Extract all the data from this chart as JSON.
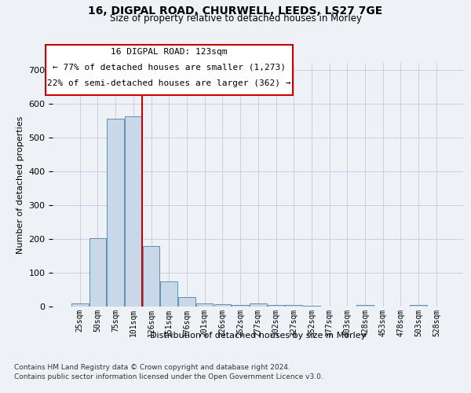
{
  "title_line1": "16, DIGPAL ROAD, CHURWELL, LEEDS, LS27 7GE",
  "title_line2": "Size of property relative to detached houses in Morley",
  "xlabel": "Distribution of detached houses by size in Morley",
  "ylabel": "Number of detached properties",
  "footer_line1": "Contains HM Land Registry data © Crown copyright and database right 2024.",
  "footer_line2": "Contains public sector information licensed under the Open Government Licence v3.0.",
  "annotation_line1": "16 DIGPAL ROAD: 123sqm",
  "annotation_line2": "← 77% of detached houses are smaller (1,273)",
  "annotation_line3": "22% of semi-detached houses are larger (362) →",
  "bar_categories": [
    "25sqm",
    "50sqm",
    "75sqm",
    "101sqm",
    "126sqm",
    "151sqm",
    "176sqm",
    "201sqm",
    "226sqm",
    "252sqm",
    "277sqm",
    "302sqm",
    "327sqm",
    "352sqm",
    "377sqm",
    "403sqm",
    "428sqm",
    "453sqm",
    "478sqm",
    "503sqm",
    "528sqm"
  ],
  "bar_values": [
    10,
    203,
    554,
    562,
    178,
    75,
    27,
    10,
    7,
    5,
    10,
    5,
    5,
    3,
    0,
    0,
    5,
    0,
    0,
    5,
    0
  ],
  "bar_color": "#c8d8e8",
  "bar_edge_color": "#6090b0",
  "vline_index": 3,
  "vline_color": "#cc0000",
  "ylim": [
    0,
    720
  ],
  "yticks": [
    0,
    100,
    200,
    300,
    400,
    500,
    600,
    700
  ],
  "annotation_box_color": "#ffffff",
  "annotation_box_edge": "#cc0000",
  "bg_color": "#eef2f7",
  "plot_bg_color": "#eef2f7",
  "grid_color": "#c8d0dc"
}
